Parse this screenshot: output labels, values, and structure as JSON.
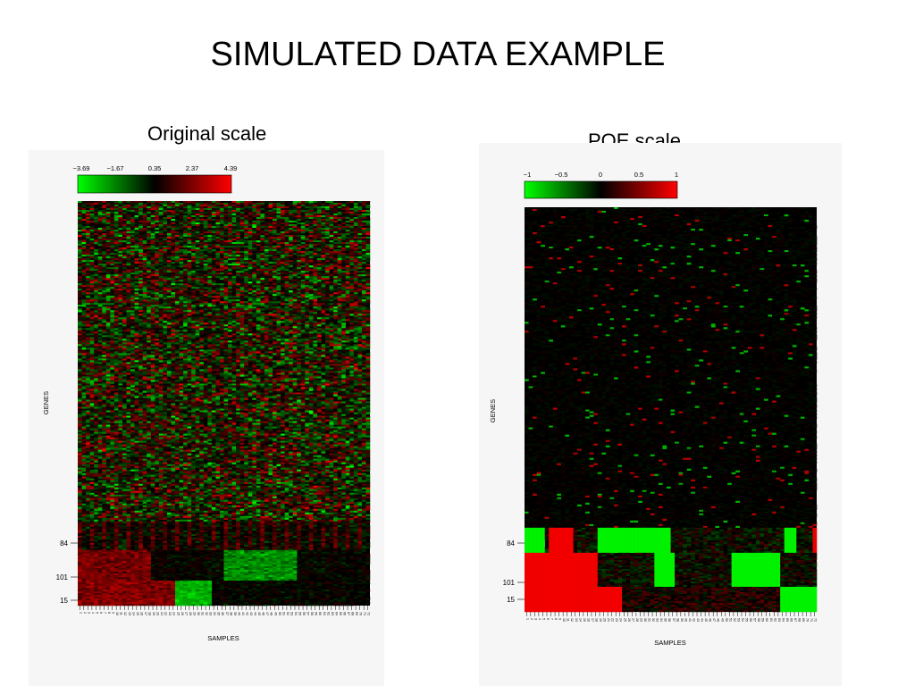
{
  "slide": {
    "title": "SIMULATED DATA EXAMPLE"
  },
  "panels": [
    {
      "caption": "Original scale"
    },
    {
      "caption": "POE scale"
    }
  ],
  "chart_data": [
    {
      "type": "heatmap",
      "title": "Original scale",
      "xlabel": "SAMPLES",
      "ylabel": "GENES",
      "colorbar": {
        "ticks": [
          "−3.69",
          "−1.67",
          "0.35",
          "2.37",
          "4.39"
        ],
        "colors": [
          "#00ff00",
          "#000000",
          "#ff0000"
        ]
      },
      "row_labels": [
        "84",
        "101",
        "15"
      ],
      "n_samples": 72,
      "sample_labels": [
        "1",
        "2",
        "3",
        "4",
        "5",
        "6",
        "7",
        "8",
        "9",
        "10",
        "11",
        "12",
        "13",
        "14",
        "15",
        "16",
        "17",
        "18",
        "19",
        "20",
        "21",
        "22",
        "23",
        "24",
        "25",
        "26",
        "27",
        "28",
        "29",
        "30",
        "31",
        "32",
        "33",
        "34",
        "35",
        "36",
        "37",
        "38",
        "39",
        "40",
        "41",
        "42",
        "43",
        "44",
        "45",
        "46",
        "47",
        "48",
        "49",
        "50",
        "51",
        "52",
        "53",
        "54",
        "55",
        "56",
        "57",
        "58",
        "59",
        "60",
        "61",
        "62",
        "63",
        "64",
        "65",
        "66",
        "67",
        "68",
        "69",
        "70",
        "71",
        "72"
      ]
    },
    {
      "type": "heatmap",
      "title": "POE scale",
      "xlabel": "SAMPLES",
      "ylabel": "GENES",
      "colorbar": {
        "ticks": [
          "−1",
          "−0.5",
          "0",
          "0.5",
          "1"
        ],
        "colors": [
          "#00ff00",
          "#000000",
          "#ff0000"
        ]
      },
      "row_labels": [
        "84",
        "101",
        "15"
      ],
      "n_samples": 72,
      "sample_labels": [
        "1",
        "2",
        "3",
        "4",
        "5",
        "6",
        "7",
        "8",
        "9",
        "10",
        "11",
        "12",
        "13",
        "14",
        "15",
        "16",
        "17",
        "18",
        "19",
        "20",
        "21",
        "22",
        "23",
        "24",
        "25",
        "26",
        "27",
        "28",
        "29",
        "30",
        "31",
        "32",
        "33",
        "34",
        "35",
        "36",
        "37",
        "38",
        "39",
        "40",
        "41",
        "42",
        "43",
        "44",
        "45",
        "46",
        "47",
        "48",
        "49",
        "50",
        "51",
        "52",
        "53",
        "54",
        "55",
        "56",
        "57",
        "58",
        "59",
        "60",
        "61",
        "62",
        "63",
        "64",
        "65",
        "66",
        "67",
        "68",
        "69",
        "70",
        "71",
        "72"
      ]
    }
  ]
}
